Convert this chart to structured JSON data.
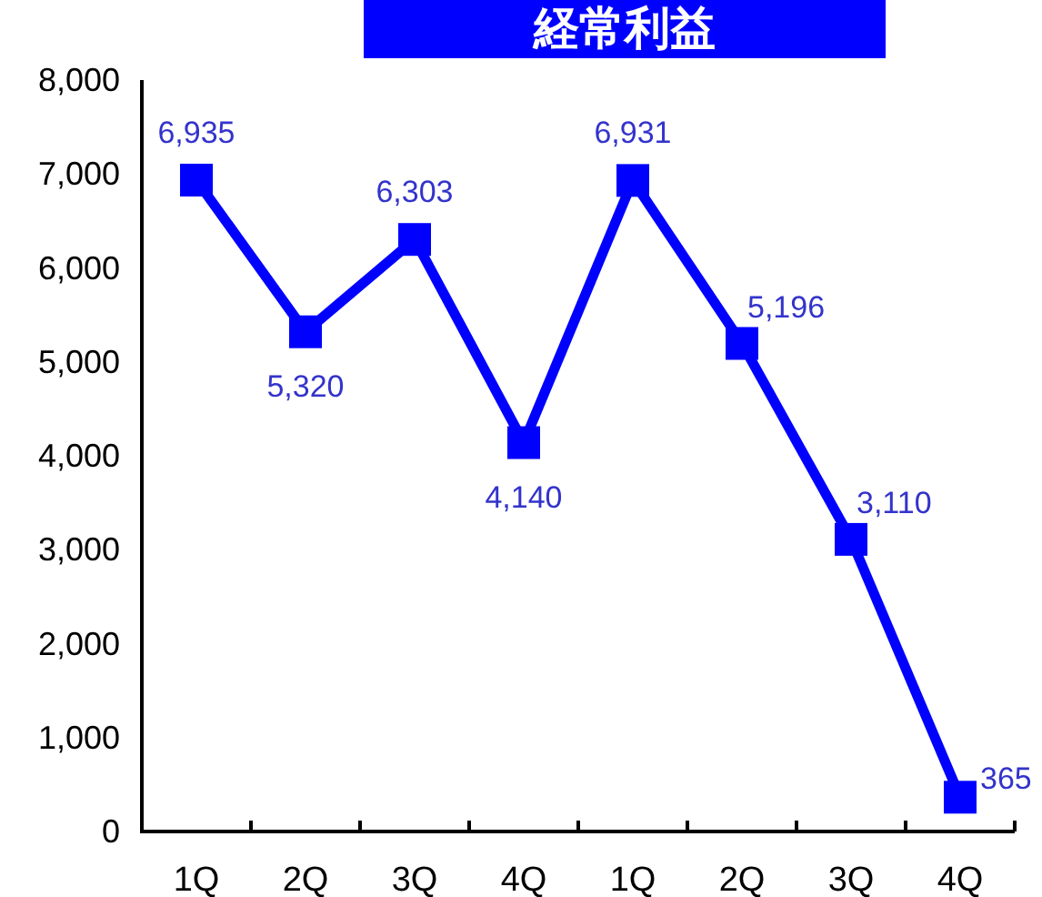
{
  "chart_data": {
    "type": "line",
    "title": "経常利益",
    "categories": [
      "1Q",
      "2Q",
      "3Q",
      "4Q",
      "1Q",
      "2Q",
      "3Q",
      "4Q"
    ],
    "series": [
      {
        "color": "#0000ff",
        "values": [
          6935,
          5320,
          6303,
          4140,
          6931,
          5196,
          3110,
          365
        ],
        "value_labels": [
          "6,935",
          "5,320",
          "6,303",
          "4,140",
          "6,931",
          "5,196",
          "3,110",
          "365"
        ]
      }
    ],
    "ylim": [
      0,
      8000
    ],
    "yticks": [
      0,
      {
        "value": 1000,
        "label": "1,000"
      },
      {
        "value": 2000,
        "label": "2,000"
      },
      {
        "value": 3000,
        "label": "3,000"
      },
      {
        "value": 4000,
        "label": "4,000"
      },
      {
        "value": 5000,
        "label": "5,000"
      },
      {
        "value": 6000,
        "label": "6,000"
      },
      {
        "value": 7000,
        "label": "7,000"
      },
      {
        "value": 8000,
        "label": "8,000"
      }
    ],
    "marker": "square",
    "line_style": "solid",
    "grid": false
  }
}
